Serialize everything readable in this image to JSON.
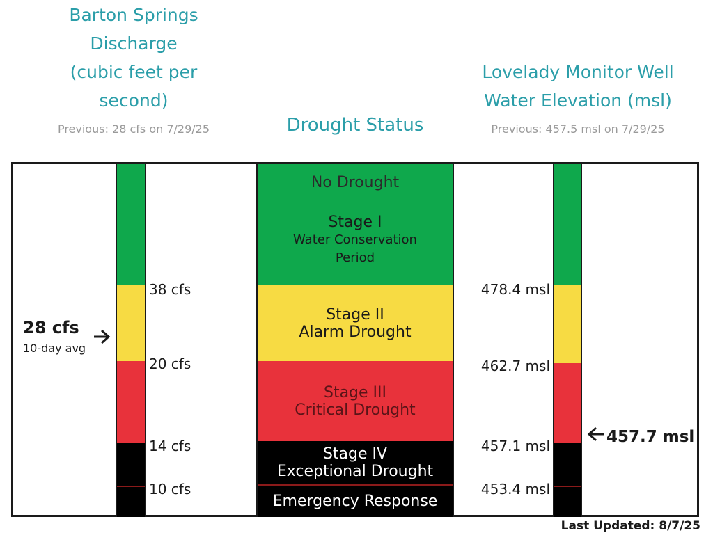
{
  "colors": {
    "teal": "#2b9ea9",
    "green": "#0fa84c",
    "yellow": "#f7db43",
    "red": "#e8323b",
    "black": "#000000",
    "marker_line": "#8b1a1a"
  },
  "left_header": {
    "title_lines": [
      "Barton Springs",
      "Discharge",
      "(cubic feet per",
      "second)"
    ],
    "previous": "Previous: 28 cfs on 7/29/25"
  },
  "center_header": {
    "title": "Drought Status"
  },
  "right_header": {
    "title_lines": [
      "Lovelady Monitor Well",
      "Water Elevation (msl)"
    ],
    "previous": "Previous: 457.5 msl on 7/29/25"
  },
  "stages": [
    {
      "label": "No Drought",
      "color": "green"
    },
    {
      "label": "Stage I",
      "sublabel": "Water Conservation",
      "sublabel2": "Period",
      "color": "green"
    },
    {
      "label": "Stage II",
      "sublabel": "Alarm Drought",
      "color": "yellow"
    },
    {
      "label": "Stage III",
      "sublabel": "Critical Drought",
      "color": "red"
    },
    {
      "label": "Stage IV",
      "sublabel": "Exceptional Drought",
      "color": "black"
    },
    {
      "label": "Emergency Response",
      "color": "black"
    }
  ],
  "discharge_thresholds": [
    "38 cfs",
    "20 cfs",
    "14 cfs",
    "10 cfs"
  ],
  "elevation_thresholds": [
    "478.4 msl",
    "462.7 msl",
    "457.1 msl",
    "453.4 msl"
  ],
  "current_discharge": {
    "value": "28 cfs",
    "note": "10-day avg",
    "arrow": "right-arrow-icon"
  },
  "current_elevation": {
    "value": "457.7 msl",
    "arrow": "left-arrow-icon"
  },
  "footer": {
    "last_updated": "Last Updated: 8/7/25"
  }
}
